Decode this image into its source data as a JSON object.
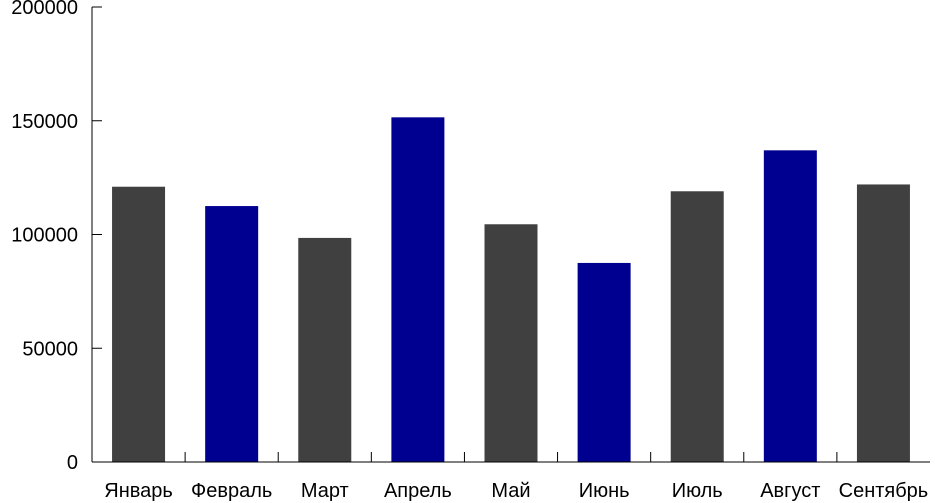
{
  "chart_data": {
    "type": "bar",
    "title": "",
    "xlabel": "",
    "ylabel": "",
    "categories": [
      "Январь",
      "Февраль",
      "Март",
      "Апрель",
      "Май",
      "Июнь",
      "Июль",
      "Август",
      "Сентябрь"
    ],
    "values": [
      121000,
      112500,
      98500,
      151500,
      104500,
      87500,
      119000,
      137000,
      122000
    ],
    "bar_colors": [
      "#404040",
      "#000090",
      "#404040",
      "#000090",
      "#404040",
      "#000090",
      "#404040",
      "#000090",
      "#404040"
    ],
    "ylim": [
      0,
      200000
    ],
    "yticks": [
      0,
      50000,
      100000,
      150000,
      200000
    ],
    "ytick_labels": [
      "0",
      "50000",
      "100000",
      "150000",
      "200000"
    ],
    "grid": false,
    "legend": "none"
  }
}
